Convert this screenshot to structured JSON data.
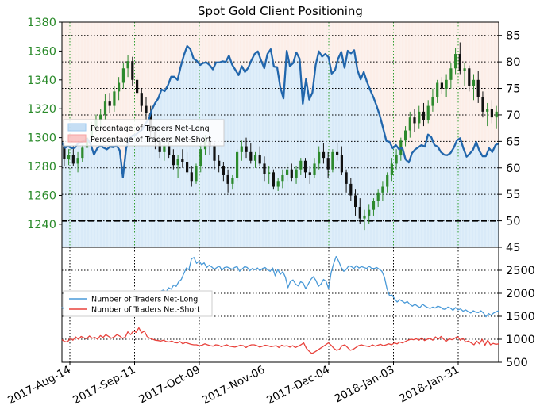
{
  "chart_data": [
    {
      "type": "line",
      "title": "Spot Gold Client Positioning",
      "x_ticks": [
        "2017-Aug-14",
        "2017-Sep-11",
        "2017-Oct-09",
        "2017-Nov-06",
        "2017-Dec-04",
        "2018-Jan-03",
        "2018-Jan-31"
      ],
      "left_axis": {
        "ticks": [
          "1240",
          "1260",
          "1280",
          "1300",
          "1320",
          "1340",
          "1360",
          "1380"
        ],
        "range": [
          1224,
          1380
        ]
      },
      "right_axis": {
        "ticks": [
          "45",
          "50",
          "55",
          "60",
          "65",
          "70",
          "75",
          "80",
          "85"
        ],
        "range": [
          45,
          87.5
        ]
      },
      "reference_line": 50,
      "legend": [
        {
          "name": "Percentage of Traders Net-Long",
          "color": "#9ec9ef"
        },
        {
          "name": "Percentage of Traders Net-Short",
          "color": "#f6a3a3"
        }
      ],
      "net_long_pct": [
        64.8,
        63.8,
        64.1,
        63.7,
        63.8,
        64.6,
        64.8,
        65.2,
        65.4,
        64.4,
        62.5,
        63.7,
        64.2,
        63.8,
        63.5,
        64.0,
        63.9,
        64.2,
        63.3,
        58.2,
        63.7,
        65.5,
        66.1,
        66.3,
        66.8,
        67.2,
        68.4,
        69.1,
        71.0,
        72.2,
        73.1,
        74.8,
        74.5,
        75.6,
        77.2,
        77.2,
        76.6,
        79.1,
        81.3,
        83.0,
        82.4,
        80.6,
        80.2,
        79.4,
        79.8,
        79.9,
        79.4,
        78.6,
        79.9,
        79.9,
        80.1,
        80.0,
        81.2,
        79.5,
        78.5,
        77.5,
        79.2,
        78.1,
        78.9,
        80.3,
        81.5,
        82.0,
        80.3,
        78.8,
        81.5,
        82.4,
        79.1,
        79.0,
        75.2,
        73.1,
        82.1,
        79.2,
        79.8,
        81.8,
        80.6,
        72.1,
        76.8,
        72.9,
        74.2,
        79.4,
        82.0,
        81.0,
        81.5,
        80.9,
        77.8,
        78.4,
        80.6,
        81.9,
        78.9,
        82.1,
        81.6,
        82.2,
        78.5,
        76.7,
        78.1,
        76.2,
        74.7,
        73.3,
        71.7,
        69.8,
        67.5,
        65.1,
        64.9,
        63.7,
        64.3,
        63.5,
        63.8,
        61.6,
        61.0,
        62.8,
        63.5,
        63.9,
        64.3,
        64.0,
        66.3,
        65.8,
        64.3,
        64.0,
        63.0,
        62.5,
        62.4,
        62.8,
        63.8,
        65.2,
        65.6,
        63.7,
        62.1,
        62.7,
        63.4,
        64.9,
        63.2,
        62.2,
        62.2,
        63.7,
        63.0,
        64.3,
        64.6
      ],
      "candles_ohlc": [
        [
          1294,
          1296,
          1280,
          1285
        ],
        [
          1285,
          1292,
          1281,
          1288
        ],
        [
          1288,
          1294,
          1280,
          1282
        ],
        [
          1282,
          1290,
          1276,
          1286
        ],
        [
          1286,
          1295,
          1283,
          1293
        ],
        [
          1293,
          1305,
          1290,
          1300
        ],
        [
          1300,
          1311,
          1297,
          1308
        ],
        [
          1308,
          1316,
          1304,
          1312
        ],
        [
          1312,
          1320,
          1306,
          1316
        ],
        [
          1316,
          1330,
          1312,
          1325
        ],
        [
          1325,
          1331,
          1317,
          1322
        ],
        [
          1322,
          1336,
          1318,
          1332
        ],
        [
          1332,
          1342,
          1326,
          1338
        ],
        [
          1338,
          1352,
          1334,
          1348
        ],
        [
          1348,
          1357,
          1342,
          1353
        ],
        [
          1353,
          1356,
          1336,
          1340
        ],
        [
          1340,
          1344,
          1326,
          1331
        ],
        [
          1331,
          1334,
          1318,
          1322
        ],
        [
          1322,
          1328,
          1312,
          1317
        ],
        [
          1317,
          1322,
          1300,
          1304
        ],
        [
          1304,
          1308,
          1292,
          1298
        ],
        [
          1298,
          1302,
          1286,
          1290
        ],
        [
          1290,
          1296,
          1284,
          1294
        ],
        [
          1294,
          1298,
          1286,
          1288
        ],
        [
          1288,
          1292,
          1278,
          1281
        ],
        [
          1281,
          1288,
          1272,
          1285
        ],
        [
          1285,
          1292,
          1279,
          1283
        ],
        [
          1283,
          1290,
          1274,
          1276
        ],
        [
          1276,
          1280,
          1266,
          1270
        ],
        [
          1270,
          1282,
          1268,
          1280
        ],
        [
          1280,
          1296,
          1276,
          1292
        ],
        [
          1292,
          1302,
          1288,
          1298
        ],
        [
          1298,
          1304,
          1288,
          1294
        ],
        [
          1294,
          1296,
          1278,
          1284
        ],
        [
          1284,
          1288,
          1276,
          1280
        ],
        [
          1280,
          1283,
          1270,
          1274
        ],
        [
          1274,
          1278,
          1262,
          1268
        ],
        [
          1268,
          1274,
          1264,
          1272
        ],
        [
          1272,
          1292,
          1270,
          1290
        ],
        [
          1290,
          1298,
          1284,
          1294
        ],
        [
          1294,
          1300,
          1286,
          1290
        ],
        [
          1290,
          1296,
          1282,
          1284
        ],
        [
          1284,
          1290,
          1279,
          1288
        ],
        [
          1288,
          1294,
          1280,
          1282
        ],
        [
          1282,
          1287,
          1270,
          1275
        ],
        [
          1275,
          1280,
          1268,
          1276
        ],
        [
          1276,
          1278,
          1264,
          1266
        ],
        [
          1266,
          1272,
          1263,
          1270
        ],
        [
          1270,
          1278,
          1265,
          1274
        ],
        [
          1274,
          1282,
          1270,
          1278
        ],
        [
          1278,
          1282,
          1270,
          1272
        ],
        [
          1272,
          1280,
          1268,
          1278
        ],
        [
          1278,
          1286,
          1274,
          1284
        ],
        [
          1284,
          1286,
          1272,
          1276
        ],
        [
          1276,
          1280,
          1268,
          1274
        ],
        [
          1274,
          1286,
          1272,
          1282
        ],
        [
          1282,
          1294,
          1278,
          1290
        ],
        [
          1290,
          1296,
          1282,
          1286
        ],
        [
          1286,
          1290,
          1272,
          1278
        ],
        [
          1278,
          1292,
          1276,
          1290
        ],
        [
          1290,
          1296,
          1284,
          1288
        ],
        [
          1288,
          1294,
          1274,
          1276
        ],
        [
          1276,
          1278,
          1262,
          1268
        ],
        [
          1268,
          1272,
          1256,
          1260
        ],
        [
          1260,
          1264,
          1246,
          1252
        ],
        [
          1252,
          1258,
          1240,
          1244
        ],
        [
          1244,
          1250,
          1236,
          1246
        ],
        [
          1246,
          1254,
          1240,
          1250
        ],
        [
          1250,
          1258,
          1246,
          1256
        ],
        [
          1256,
          1264,
          1252,
          1262
        ],
        [
          1262,
          1270,
          1256,
          1266
        ],
        [
          1266,
          1276,
          1262,
          1274
        ],
        [
          1274,
          1286,
          1270,
          1282
        ],
        [
          1282,
          1292,
          1278,
          1288
        ],
        [
          1288,
          1300,
          1284,
          1298
        ],
        [
          1298,
          1308,
          1294,
          1305
        ],
        [
          1305,
          1318,
          1300,
          1314
        ],
        [
          1314,
          1320,
          1304,
          1310
        ],
        [
          1310,
          1322,
          1306,
          1318
        ],
        [
          1318,
          1324,
          1308,
          1312
        ],
        [
          1312,
          1326,
          1310,
          1322
        ],
        [
          1322,
          1334,
          1318,
          1328
        ],
        [
          1328,
          1340,
          1324,
          1338
        ],
        [
          1338,
          1342,
          1330,
          1334
        ],
        [
          1334,
          1344,
          1328,
          1340
        ],
        [
          1340,
          1352,
          1334,
          1348
        ],
        [
          1348,
          1362,
          1344,
          1358
        ],
        [
          1358,
          1366,
          1344,
          1346
        ],
        [
          1346,
          1352,
          1336,
          1348
        ],
        [
          1348,
          1350,
          1332,
          1336
        ],
        [
          1336,
          1344,
          1326,
          1340
        ],
        [
          1340,
          1346,
          1324,
          1328
        ],
        [
          1328,
          1332,
          1314,
          1318
        ],
        [
          1318,
          1324,
          1308,
          1320
        ],
        [
          1320,
          1326,
          1310,
          1314
        ],
        [
          1314,
          1322,
          1306,
          1318
        ]
      ],
      "net_long_traders": [
        1700,
        1640,
        1610,
        1660,
        1610,
        1580,
        1640,
        1600,
        1570,
        1620,
        1600,
        1560,
        1620,
        1590,
        1560,
        1610,
        1570,
        1540,
        1600,
        1550,
        1580,
        1570,
        1610,
        1600,
        1640,
        1650,
        1690,
        1660,
        1720,
        1780,
        1820,
        1870,
        1850,
        1910,
        1900,
        1960,
        1930,
        2000,
        1990,
        2050,
        2070,
        2030,
        2120,
        2090,
        2180,
        2150,
        2250,
        2300,
        2430,
        2550,
        2510,
        2750,
        2780,
        2650,
        2700,
        2620,
        2660,
        2560,
        2610,
        2570,
        2520,
        2560,
        2590,
        2500,
        2560,
        2570,
        2550,
        2520,
        2560,
        2580,
        2480,
        2530,
        2580,
        2560,
        2490,
        2540,
        2510,
        2550,
        2490,
        2540,
        2560,
        2510,
        2480,
        2550,
        2380,
        2520,
        2410,
        2470,
        2350,
        2120,
        2260,
        2290,
        2200,
        2160,
        2250,
        2220,
        2100,
        2200,
        2300,
        2360,
        2280,
        2150,
        2200,
        2300,
        2260,
        2100,
        2450,
        2650,
        2800,
        2700,
        2560,
        2480,
        2520,
        2600,
        2580,
        2540,
        2600,
        2550,
        2580,
        2560,
        2540,
        2590,
        2540,
        2540,
        2560,
        2520,
        2480,
        2350,
        2100,
        1950,
        1960,
        1880,
        1810,
        1860,
        1830,
        1790,
        1820,
        1760,
        1720,
        1760,
        1720,
        1690,
        1760,
        1720,
        1690,
        1670,
        1700,
        1680,
        1720,
        1700,
        1660,
        1650,
        1700,
        1680,
        1630,
        1690,
        1640,
        1660,
        1610,
        1640,
        1600,
        1570,
        1620,
        1590,
        1580,
        1620,
        1570,
        1490,
        1560,
        1520,
        1570,
        1600,
        1620
      ],
      "net_short_traders": [
        990,
        950,
        940,
        1020,
        980,
        1050,
        1000,
        1060,
        1030,
        1010,
        1070,
        1020,
        1040,
        1000,
        1080,
        1040,
        1100,
        1060,
        1020,
        1050,
        1100,
        1070,
        1020,
        1040,
        1160,
        1100,
        1180,
        1150,
        1250,
        1140,
        1180,
        1060,
        1020,
        1000,
        980,
        970,
        960,
        980,
        950,
        940,
        960,
        930,
        920,
        950,
        900,
        930,
        910,
        890,
        880,
        880,
        860,
        870,
        900,
        880,
        860,
        850,
        880,
        870,
        840,
        860,
        880,
        850,
        840,
        830,
        850,
        870,
        860,
        820,
        860,
        880,
        880,
        860,
        830,
        850,
        870,
        860,
        840,
        850,
        860,
        820,
        870,
        850,
        860,
        830,
        860,
        820,
        850,
        880,
        920,
        800,
        740,
        690,
        720,
        760,
        800,
        840,
        880,
        920,
        870,
        800,
        760,
        780,
        860,
        880,
        820,
        760,
        780,
        820,
        860,
        880,
        860,
        850,
        840,
        880,
        850,
        870,
        890,
        860,
        880,
        900,
        880,
        920,
        900,
        940,
        920,
        950,
        980,
        1000,
        990,
        1010,
        980,
        1030,
        970,
        1000,
        1020,
        980,
        1050,
        1000,
        1060,
        1000,
        960,
        1010,
        990,
        1020,
        1060,
        980,
        1020,
        940,
        960,
        920,
        880,
        960,
        900,
        1000,
        870,
        980,
        880,
        910,
        890,
        900
      ],
      "lower_left_ticks": [
        "500",
        "1000",
        "1500",
        "2000",
        "2500"
      ],
      "lower_legend": [
        {
          "name": "Number of Traders Net-Long",
          "color": "#4a9ad8"
        },
        {
          "name": "Number of Traders Net-Short",
          "color": "#e8423c"
        }
      ],
      "lower_range": [
        500,
        3000
      ]
    }
  ],
  "colors": {
    "net_long_fill": "#d9eaf8",
    "net_short_fill": "#fceee8",
    "net_long_line": "#2166ac",
    "candle_up": "#2d8a2d",
    "candle_down": "#111111",
    "green_label": "#2a8a2a",
    "grid_green": "#2e9e2e"
  }
}
